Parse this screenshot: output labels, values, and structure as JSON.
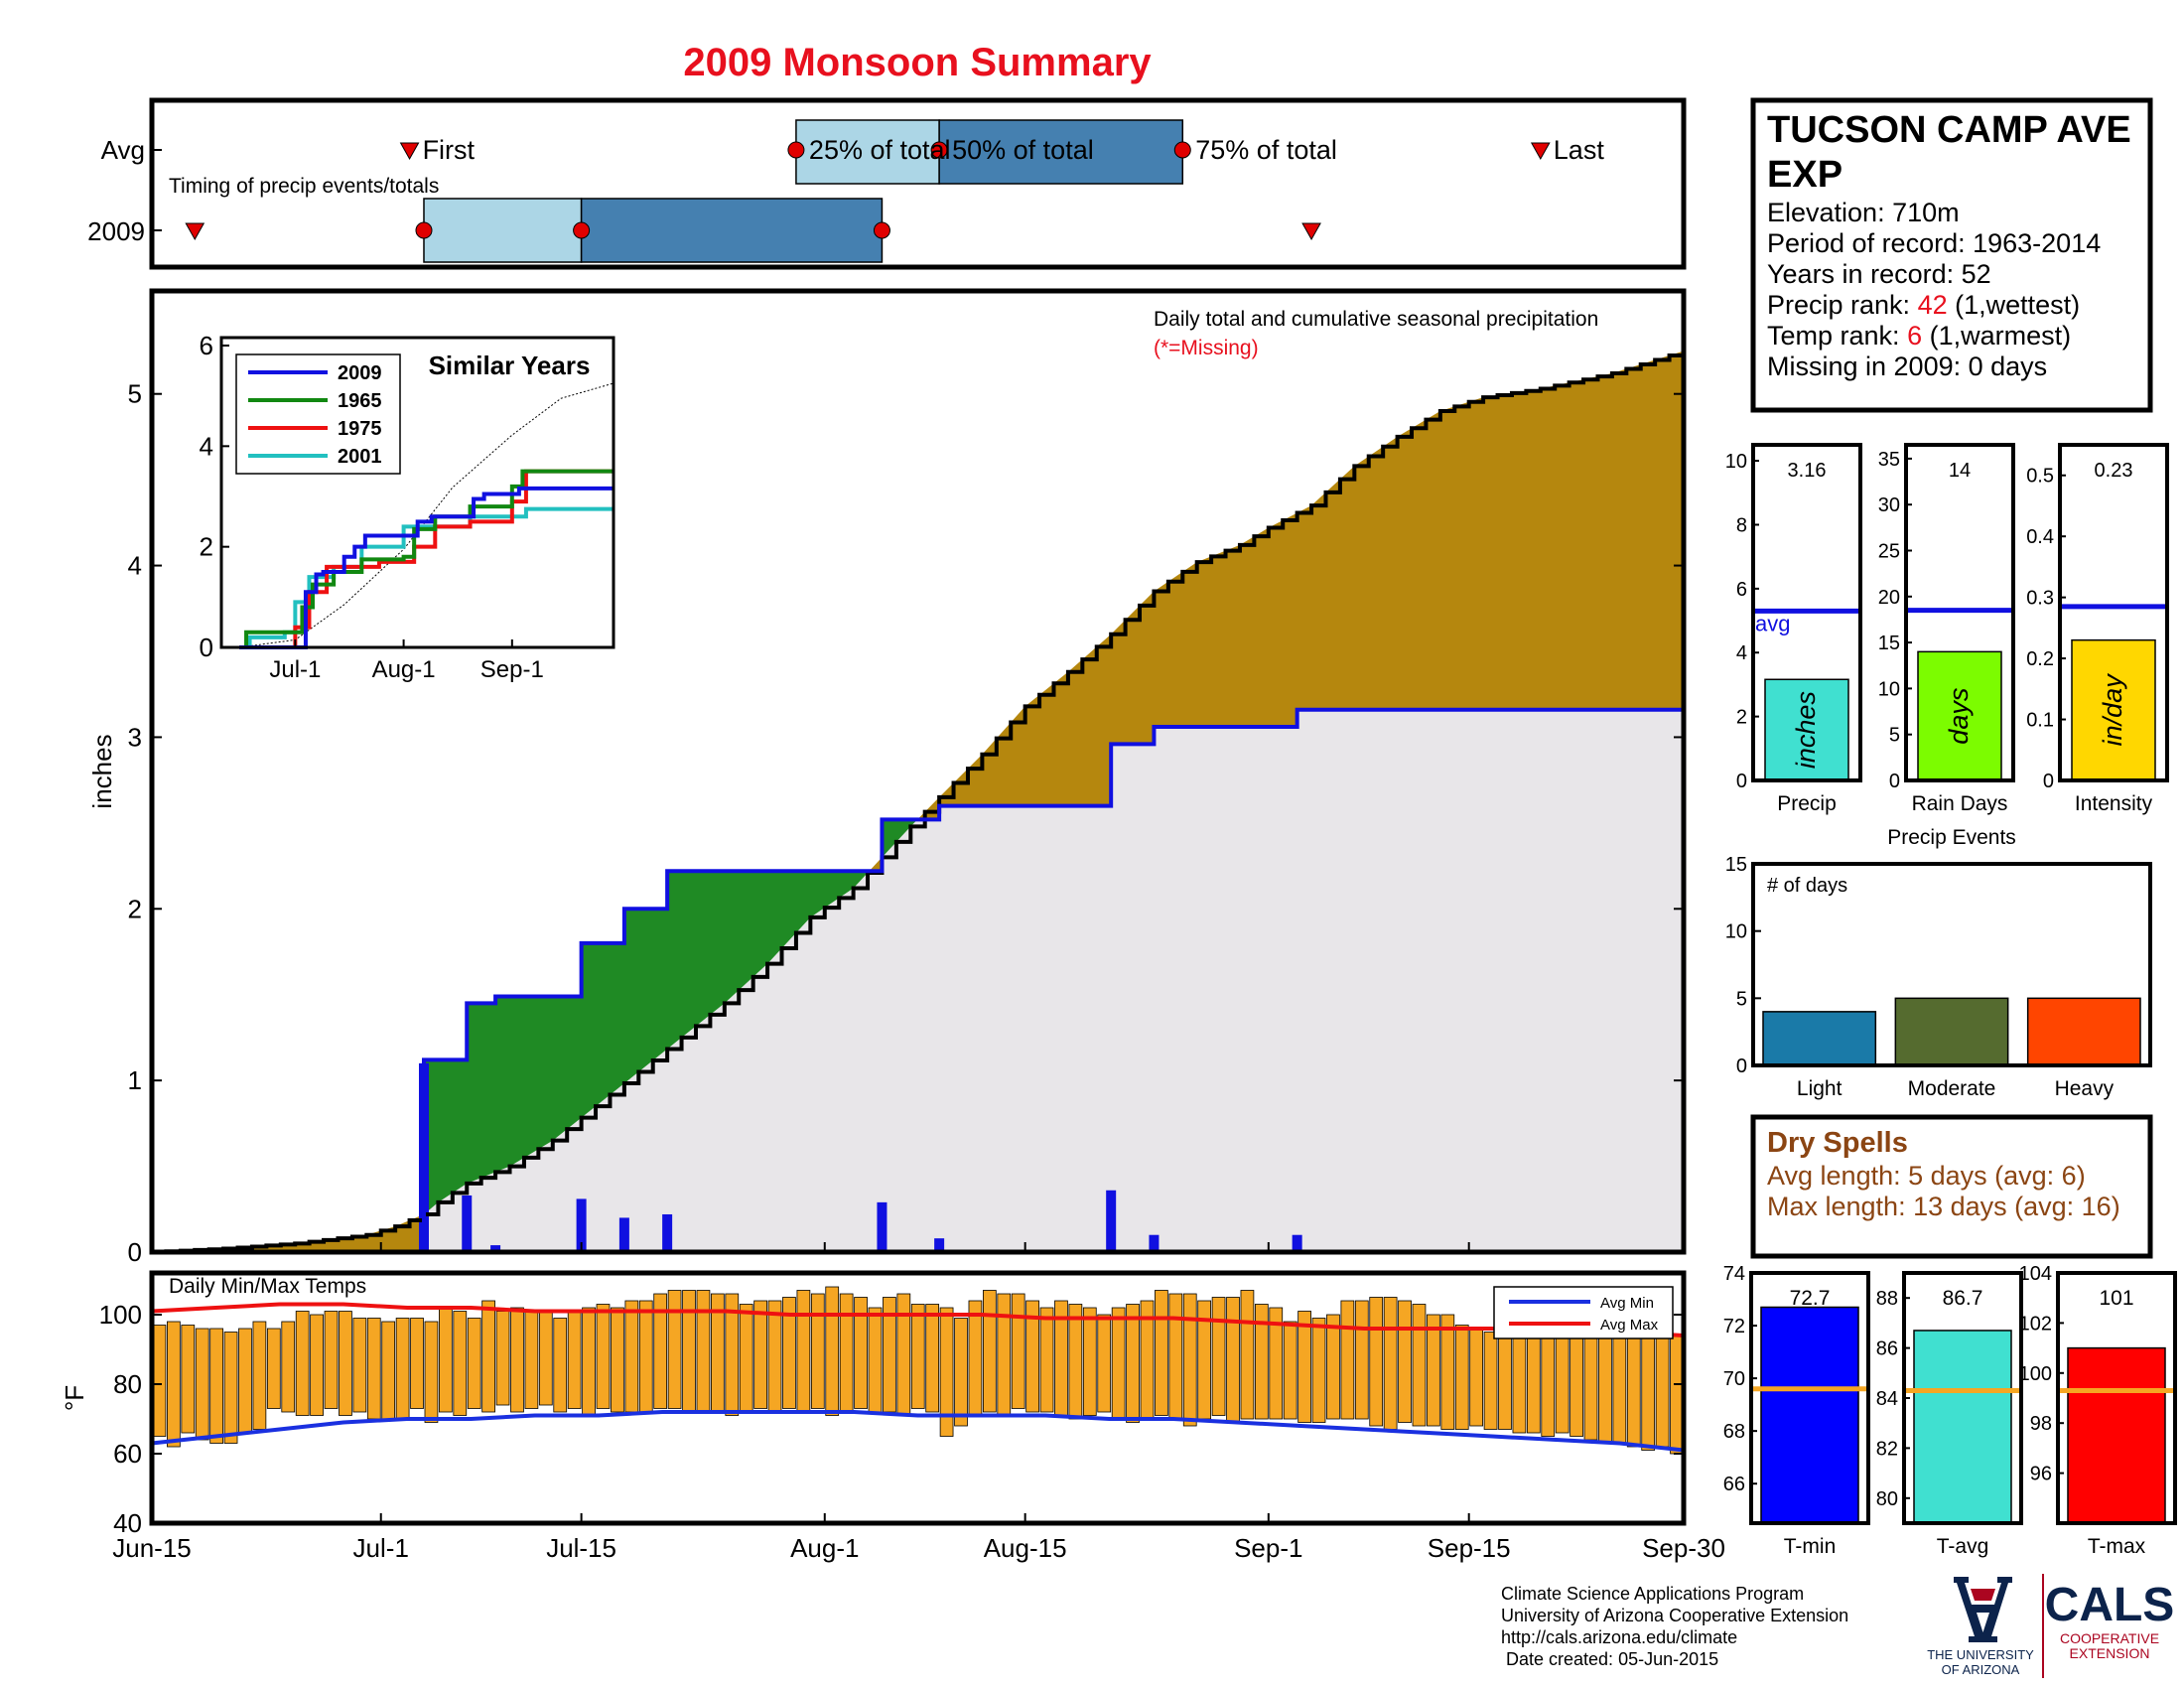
{
  "title": "2009 Monsoon Summary",
  "colors": {
    "title": "#e8101e",
    "cumulative_fill": "#b5870e",
    "below_fill": "#1f8a24",
    "avg_fill": "#e8e6e9",
    "year_line": "#1010e0",
    "temp_bar": "#f5a623",
    "avg_min_line": "#1a30e0",
    "avg_max_line": "#ee1111",
    "box_light": "#acd6e6",
    "box_dark": "#4580b0",
    "marker": "#e00000",
    "dry_spell_text": "#8b4513",
    "precip_bar": "#40e0d0",
    "raindays_bar": "#7cfc00",
    "intensity_bar": "#ffd700",
    "light_bar": "#1a7aa8",
    "moderate_bar": "#556b2f",
    "heavy_bar": "#ff4500",
    "tmin_bar": "#0000ff",
    "tavg_bar": "#40e0d0",
    "tmax_bar": "#ff0000",
    "avg_marker_line": "#f5a623"
  },
  "timing_panel": {
    "caption": "Timing of precip events/totals",
    "row_labels": [
      "Avg",
      "2009"
    ],
    "avg": {
      "first": "Jul-3",
      "p25": "Jul-30",
      "p50": "Aug-9",
      "p75": "Aug-26",
      "last": "Sep-20",
      "labels": {
        "first": "First",
        "p25": "25% of total",
        "p50": "50% of total",
        "p75": "75% of total",
        "last": "Last"
      }
    },
    "year": {
      "first": "Jun-18",
      "p25": "Jul-4",
      "p50": "Jul-15",
      "p75": "Aug-5",
      "last": "Sep-4"
    }
  },
  "chart_data": [
    {
      "id": "cumulative-precip",
      "type": "area",
      "title": "Daily total and cumulative seasonal precipitation",
      "note": "(*=Missing)",
      "ylabel": "inches",
      "ylim": [
        0,
        5.6
      ],
      "yticks": [
        0,
        1,
        2,
        3,
        4,
        5
      ],
      "x_start": "Jun-15",
      "x_end": "Sep-30",
      "xtick_labels": [
        "Jun-15",
        "Jul-1",
        "Jul-15",
        "Aug-1",
        "Aug-15",
        "Sep-1",
        "Sep-15",
        "Sep-30"
      ],
      "series": [
        {
          "name": "average cumulative",
          "points": [
            [
              "Jun-15",
              0
            ],
            [
              "Jun-20",
              0.02
            ],
            [
              "Jun-25",
              0.05
            ],
            [
              "Jun-30",
              0.1
            ],
            [
              "Jul-2",
              0.15
            ],
            [
              "Jul-4",
              0.22
            ],
            [
              "Jul-5",
              0.29
            ],
            [
              "Jul-7",
              0.4
            ],
            [
              "Jul-10",
              0.5
            ],
            [
              "Jul-13",
              0.65
            ],
            [
              "Jul-16",
              0.85
            ],
            [
              "Jul-19",
              1.05
            ],
            [
              "Jul-22",
              1.25
            ],
            [
              "Jul-25",
              1.45
            ],
            [
              "Jul-28",
              1.68
            ],
            [
              "Jul-31",
              1.95
            ],
            [
              "Aug-3",
              2.12
            ],
            [
              "Aug-5",
              2.3
            ],
            [
              "Aug-7",
              2.48
            ],
            [
              "Aug-9",
              2.65
            ],
            [
              "Aug-12",
              2.9
            ],
            [
              "Aug-15",
              3.18
            ],
            [
              "Aug-18",
              3.38
            ],
            [
              "Aug-21",
              3.6
            ],
            [
              "Aug-24",
              3.85
            ],
            [
              "Aug-27",
              4.02
            ],
            [
              "Aug-30",
              4.12
            ],
            [
              "Sep-1",
              4.22
            ],
            [
              "Sep-4",
              4.35
            ],
            [
              "Sep-7",
              4.58
            ],
            [
              "Sep-10",
              4.75
            ],
            [
              "Sep-13",
              4.9
            ],
            [
              "Sep-16",
              4.98
            ],
            [
              "Sep-20",
              5.03
            ],
            [
              "Sep-25",
              5.12
            ],
            [
              "Sep-30",
              5.25
            ]
          ]
        },
        {
          "name": "2009 cumulative",
          "points": [
            [
              "Jun-15",
              0
            ],
            [
              "Jul-3",
              0
            ],
            [
              "Jul-4",
              1.12
            ],
            [
              "Jul-7",
              1.45
            ],
            [
              "Jul-9",
              1.49
            ],
            [
              "Jul-15",
              1.8
            ],
            [
              "Jul-18",
              2.0
            ],
            [
              "Jul-21",
              2.22
            ],
            [
              "Aug-4",
              2.22
            ],
            [
              "Aug-5",
              2.52
            ],
            [
              "Aug-9",
              2.6
            ],
            [
              "Aug-21",
              2.96
            ],
            [
              "Aug-24",
              3.06
            ],
            [
              "Sep-3",
              3.16
            ],
            [
              "Sep-30",
              3.16
            ]
          ]
        }
      ],
      "daily_bars": [
        [
          "Jul-4",
          1.1
        ],
        [
          "Jul-7",
          0.33
        ],
        [
          "Jul-9",
          0.04
        ],
        [
          "Jul-15",
          0.31
        ],
        [
          "Jul-18",
          0.2
        ],
        [
          "Jul-21",
          0.22
        ],
        [
          "Aug-5",
          0.29
        ],
        [
          "Aug-9",
          0.08
        ],
        [
          "Aug-21",
          0.36
        ],
        [
          "Aug-24",
          0.1
        ],
        [
          "Sep-3",
          0.1
        ]
      ]
    },
    {
      "id": "similar-years",
      "type": "line",
      "title": "Similar Years",
      "ylim": [
        0,
        6
      ],
      "yticks": [
        0,
        2,
        4,
        6
      ],
      "xtick_labels": [
        "Jul-1",
        "Aug-1",
        "Sep-1"
      ],
      "series": [
        {
          "name": "2009",
          "color": "#1010e0",
          "points": [
            [
              "Jun-15",
              0
            ],
            [
              "Jul-3",
              0
            ],
            [
              "Jul-4",
              1.1
            ],
            [
              "Jul-7",
              1.45
            ],
            [
              "Jul-9",
              1.5
            ],
            [
              "Jul-15",
              1.8
            ],
            [
              "Jul-18",
              2.0
            ],
            [
              "Jul-21",
              2.22
            ],
            [
              "Aug-4",
              2.22
            ],
            [
              "Aug-5",
              2.5
            ],
            [
              "Aug-9",
              2.6
            ],
            [
              "Aug-21",
              2.95
            ],
            [
              "Aug-24",
              3.05
            ],
            [
              "Sep-3",
              3.16
            ],
            [
              "Sep-30",
              3.16
            ]
          ]
        },
        {
          "name": "1965",
          "color": "#118811",
          "points": [
            [
              "Jun-15",
              0
            ],
            [
              "Jun-17",
              0.3
            ],
            [
              "Jun-27",
              0.3
            ],
            [
              "Jul-3",
              0.8
            ],
            [
              "Jul-6",
              1.25
            ],
            [
              "Jul-12",
              1.5
            ],
            [
              "Jul-20",
              1.75
            ],
            [
              "Aug-1",
              1.8
            ],
            [
              "Aug-4",
              2.35
            ],
            [
              "Aug-10",
              2.6
            ],
            [
              "Aug-20",
              2.8
            ],
            [
              "Sep-1",
              3.2
            ],
            [
              "Sep-4",
              3.5
            ],
            [
              "Sep-30",
              3.5
            ]
          ]
        },
        {
          "name": "1975",
          "color": "#ee1111",
          "points": [
            [
              "Jun-15",
              0
            ],
            [
              "Jun-30",
              0
            ],
            [
              "Jul-1",
              0.4
            ],
            [
              "Jul-5",
              1.1
            ],
            [
              "Jul-10",
              1.6
            ],
            [
              "Jul-25",
              1.7
            ],
            [
              "Aug-4",
              2.0
            ],
            [
              "Aug-10",
              2.4
            ],
            [
              "Aug-20",
              2.5
            ],
            [
              "Sep-1",
              2.9
            ],
            [
              "Sep-5",
              3.5
            ],
            [
              "Sep-30",
              3.5
            ]
          ]
        },
        {
          "name": "2001",
          "color": "#22c0c0",
          "points": [
            [
              "Jun-15",
              0
            ],
            [
              "Jun-18",
              0.2
            ],
            [
              "Jun-28",
              0.3
            ],
            [
              "Jul-1",
              0.9
            ],
            [
              "Jul-5",
              1.4
            ],
            [
              "Jul-12",
              1.6
            ],
            [
              "Jul-20",
              2.0
            ],
            [
              "Aug-1",
              2.4
            ],
            [
              "Aug-20",
              2.6
            ],
            [
              "Sep-5",
              2.75
            ],
            [
              "Sep-30",
              2.75
            ]
          ]
        },
        {
          "name": "average",
          "color": "#000000",
          "points": [
            [
              "Jun-15",
              0
            ],
            [
              "Jul-1",
              0.15
            ],
            [
              "Jul-15",
              0.85
            ],
            [
              "Aug-1",
              1.95
            ],
            [
              "Aug-15",
              3.18
            ],
            [
              "Sep-1",
              4.22
            ],
            [
              "Sep-15",
              4.95
            ],
            [
              "Sep-30",
              5.25
            ]
          ]
        }
      ]
    },
    {
      "id": "daily-temps",
      "type": "bar",
      "title": "Daily Min/Max Temps",
      "ylabel": "°F",
      "ylim": [
        40,
        112
      ],
      "yticks": [
        40,
        60,
        80,
        100
      ],
      "legend": [
        "Avg Min",
        "Avg Max"
      ],
      "avg_min": [
        63,
        65,
        67,
        69,
        70,
        70,
        71,
        71,
        72,
        72,
        72,
        72,
        71,
        71,
        71,
        70,
        70,
        69,
        68,
        67,
        66,
        65,
        64,
        63,
        61
      ],
      "avg_max": [
        101,
        102,
        103,
        103,
        102,
        102,
        101,
        101,
        101,
        101,
        100,
        100,
        100,
        100,
        99,
        99,
        99,
        98,
        97,
        96,
        96,
        96,
        95,
        95,
        94
      ],
      "daily_max": [
        97,
        98,
        97,
        96,
        96,
        95,
        96,
        98,
        96,
        98,
        101,
        100,
        101,
        101,
        99,
        99,
        98,
        99,
        99,
        98,
        102,
        101,
        99,
        104,
        101,
        102,
        101,
        101,
        99,
        101,
        102,
        103,
        102,
        104,
        104,
        106,
        107,
        107,
        107,
        106,
        106,
        103,
        104,
        104,
        105,
        107,
        106,
        108,
        106,
        105,
        102,
        105,
        106,
        103,
        103,
        102,
        99,
        104,
        107,
        106,
        106,
        104,
        102,
        104,
        103,
        102,
        100,
        102,
        103,
        104,
        107,
        106,
        106,
        104,
        105,
        105,
        107,
        103,
        102,
        98,
        101,
        99,
        100,
        104,
        104,
        105,
        105,
        104,
        103,
        100,
        100,
        97,
        96,
        95,
        99,
        100,
        102,
        103,
        102,
        100,
        98,
        98,
        97,
        96,
        97,
        95,
        94
      ],
      "daily_min": [
        65,
        62,
        66,
        64,
        63,
        63,
        66,
        67,
        73,
        72,
        71,
        71,
        73,
        71,
        72,
        70,
        70,
        70,
        73,
        69,
        72,
        71,
        73,
        72,
        74,
        72,
        73,
        74,
        72,
        73,
        71,
        73,
        72,
        72,
        72,
        73,
        73,
        72,
        72,
        72,
        71,
        72,
        73,
        72,
        73,
        72,
        73,
        71,
        72,
        73,
        72,
        72,
        71,
        73,
        72,
        65,
        68,
        71,
        72,
        71,
        73,
        72,
        72,
        71,
        70,
        71,
        72,
        70,
        69,
        70,
        71,
        70,
        68,
        70,
        71,
        69,
        70,
        70,
        70,
        70,
        69,
        69,
        70,
        70,
        70,
        68,
        67,
        69,
        68,
        68,
        67,
        67,
        68,
        67,
        67,
        66,
        66,
        65,
        66,
        65,
        64,
        63,
        63,
        62,
        61,
        62,
        60
      ]
    },
    {
      "id": "season-precip-stats",
      "type": "bar",
      "panels": [
        {
          "label": "Precip",
          "unit": "inches",
          "value": 3.16,
          "value_label": "3.16",
          "avg": 5.3,
          "avg_label": "avg",
          "ylim": [
            0,
            10.5
          ],
          "yticks": [
            0,
            2,
            4,
            6,
            8,
            10
          ]
        },
        {
          "label": "Rain Days",
          "unit": "days",
          "value": 14,
          "value_label": "14",
          "avg": 18.5,
          "ylim": [
            0,
            36.5
          ],
          "yticks": [
            0,
            5,
            10,
            15,
            20,
            25,
            30,
            35
          ]
        },
        {
          "label": "Intensity",
          "unit": "in/day",
          "value": 0.23,
          "value_label": "0.23",
          "avg": 0.285,
          "ylim": [
            0,
            0.55
          ],
          "yticks": [
            0,
            0.1,
            0.2,
            0.3,
            0.4,
            0.5
          ]
        }
      ]
    },
    {
      "id": "precip-events",
      "type": "bar",
      "title": "Precip Events",
      "ylabel": "# of days",
      "categories": [
        "Light",
        "Moderate",
        "Heavy"
      ],
      "values": [
        4,
        5,
        5
      ],
      "ylim": [
        0,
        15
      ],
      "yticks": [
        0,
        5,
        10,
        15
      ]
    },
    {
      "id": "season-temp-stats",
      "type": "bar",
      "panels": [
        {
          "label": "T-min",
          "value": 72.7,
          "value_label": "72.7",
          "avg": 69.6,
          "ylim": [
            64.5,
            74
          ],
          "yticks": [
            66,
            68,
            70,
            72,
            74
          ]
        },
        {
          "label": "T-avg",
          "value": 86.7,
          "value_label": "86.7",
          "avg": 84.3,
          "ylim": [
            79,
            89
          ],
          "yticks": [
            80,
            82,
            84,
            86,
            88
          ]
        },
        {
          "label": "T-max",
          "value": 101,
          "value_label": "101",
          "avg": 99.3,
          "ylim": [
            94,
            104
          ],
          "yticks": [
            96,
            98,
            100,
            102,
            104
          ]
        }
      ]
    }
  ],
  "station": {
    "name_line1": "TUCSON CAMP AVE",
    "name_line2": "EXP",
    "elevation": "Elevation: 710m",
    "period": "Period of record: 1963-2014",
    "years": "Years in record: 52",
    "precip_rank_prefix": "Precip rank: ",
    "precip_rank_value": "42",
    "precip_rank_suffix": " (1,wettest)",
    "temp_rank_prefix": "Temp rank: ",
    "temp_rank_value": "6",
    "temp_rank_suffix": " (1,warmest)",
    "missing": "Missing in 2009: 0 days"
  },
  "dry_spells": {
    "title": "Dry Spells",
    "avg_length": "Avg length: 5 days (avg: 6)",
    "max_length": "Max length: 13 days (avg: 16)"
  },
  "footer": {
    "line1": "Climate Science Applications Program",
    "line2": "University of Arizona Cooperative Extension",
    "line3": "http://cals.arizona.edu/climate",
    "line4": " Date created: 05-Jun-2015"
  },
  "logos": {
    "ua_text_1": "THE UNIVERSITY",
    "ua_text_2": "OF ARIZONA",
    "cals_main": "CALS",
    "cals_sub_1": "COOPERATIVE",
    "cals_sub_2": "EXTENSION"
  }
}
